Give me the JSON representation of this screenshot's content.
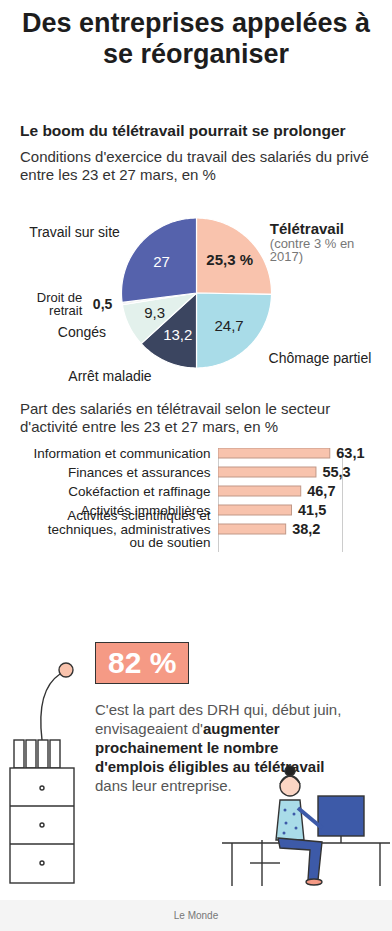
{
  "title": "Des entreprises appelées à se réorganiser",
  "chart_data": [
    {
      "type": "pie",
      "title": "Le boom du télétravail pourrait se prolonger",
      "subtitle": "Conditions d'exercice du travail des salariés du privé entre les 23 et 27 mars, en %",
      "categories": [
        "Télétravail",
        "Chômage partiel",
        "Arrêt maladie",
        "Congés",
        "Droit de retrait",
        "Travail sur site"
      ],
      "values": [
        25.3,
        24.7,
        13.2,
        9.3,
        0.5,
        27
      ],
      "value_labels": [
        "25,3 %",
        "24,7",
        "13,2",
        "9,3",
        "0,5",
        "27"
      ],
      "colors": [
        "#f9c3ad",
        "#a9dce8",
        "#3b4560",
        "#e3f1ec",
        "#f2f2f2",
        "#5562ac"
      ],
      "data_labels": true,
      "tick_labels": false,
      "annotations": [
        {
          "category": "Télétravail",
          "text": "(contre 3 % en 2017)"
        }
      ]
    },
    {
      "type": "bar",
      "orientation": "horizontal",
      "subtitle": "Part des salariés en télétravail selon le secteur d'activité entre les 23 et 27 mars, en %",
      "categories": [
        "Information et communication",
        "Finances et assurances",
        "Cokéfaction et raffinage",
        "Activités immobilières",
        "Activités scientifiques et techniques, administratives ou de soutien"
      ],
      "values": [
        63.1,
        55.3,
        46.7,
        41.5,
        38.2
      ],
      "value_labels": [
        "63,1",
        "55,3",
        "46,7",
        "41,5",
        "38,2"
      ],
      "color": "#f8c3ad",
      "xlim": [
        0,
        70
      ],
      "xticks": [],
      "data_labels": true,
      "tick_labels": "y"
    }
  ],
  "callout": {
    "highlight": "82 %",
    "text": [
      {
        "text": "C'est la part des DRH qui, début juin, envisageaient d'",
        "bold": false
      },
      {
        "text": "augmenter prochainement le nombre d'emplois éligibles au télétravail",
        "bold": true
      },
      {
        "text": " dans leur entreprise.",
        "bold": false
      }
    ]
  },
  "source": "Le Monde"
}
